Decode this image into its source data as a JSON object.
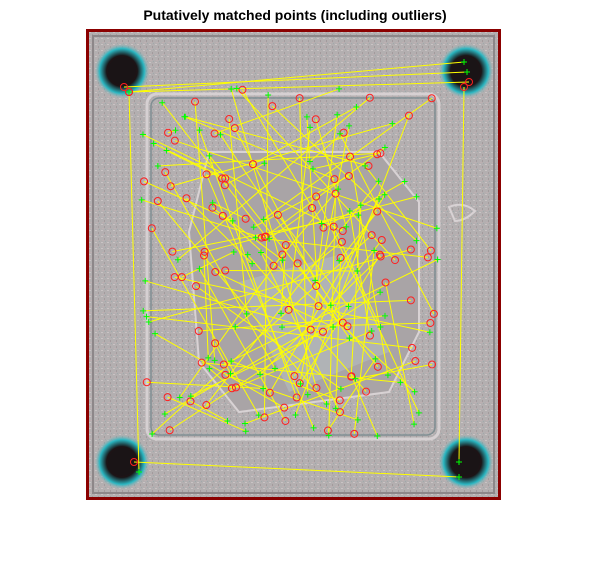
{
  "figure": {
    "title": "Putatively matched points (including outliers)"
  },
  "colors": {
    "frame": "#8b0000",
    "match_line": "#ffff00",
    "point_set_1": "#ff2020",
    "point_set_2": "#00ff00",
    "plate_gray": "#b3afb0",
    "hole_dark": "#1a1416",
    "hole_cyan": "#2ab7c2"
  },
  "image_content": {
    "description_icon": "overlay-image-icon",
    "corner_hole_count": 4
  }
}
